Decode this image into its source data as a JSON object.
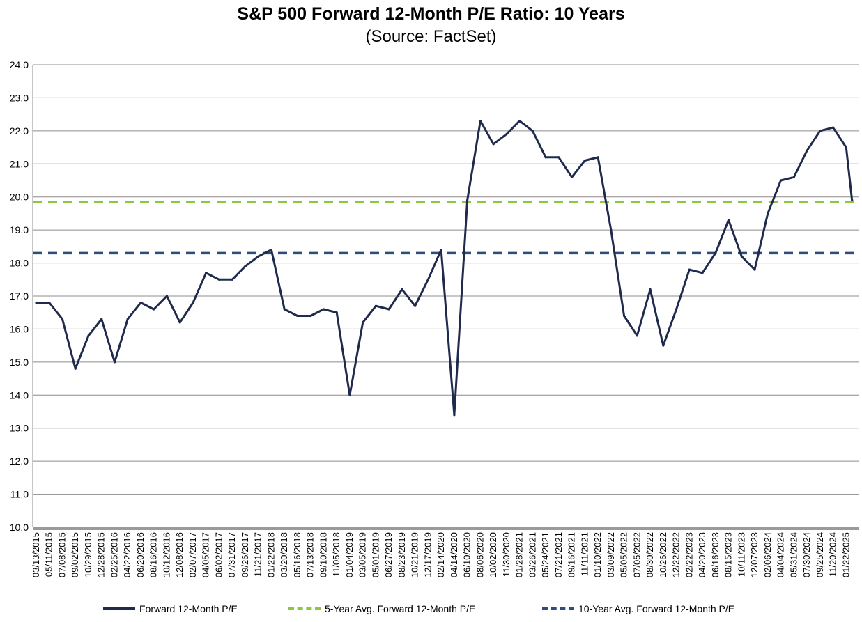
{
  "chart_data": {
    "type": "line",
    "title": "S&P 500 Forward 12-Month P/E Ratio: 10 Years",
    "subtitle": "(Source: FactSet)",
    "xlabel": "",
    "ylabel": "",
    "ylim": [
      10.0,
      24.0
    ],
    "y_ticks": [
      "10.0",
      "11.0",
      "12.0",
      "13.0",
      "14.0",
      "15.0",
      "16.0",
      "17.0",
      "18.0",
      "19.0",
      "20.0",
      "21.0",
      "22.0",
      "23.0",
      "24.0"
    ],
    "x_tick_labels": [
      "03/13/2015",
      "05/11/2015",
      "07/08/2015",
      "09/02/2015",
      "10/29/2015",
      "12/28/2015",
      "02/25/2016",
      "04/22/2016",
      "06/20/2016",
      "08/16/2016",
      "10/12/2016",
      "12/08/2016",
      "02/07/2017",
      "04/05/2017",
      "06/02/2017",
      "07/31/2017",
      "09/26/2017",
      "11/21/2017",
      "01/22/2018",
      "03/20/2018",
      "05/16/2018",
      "07/13/2018",
      "09/10/2018",
      "11/05/2018",
      "01/04/2019",
      "03/05/2019",
      "05/01/2019",
      "06/27/2019",
      "08/23/2019",
      "10/21/2019",
      "12/17/2019",
      "02/14/2020",
      "04/14/2020",
      "06/10/2020",
      "08/06/2020",
      "10/02/2020",
      "11/30/2020",
      "01/28/2021",
      "03/26/2021",
      "05/24/2021",
      "07/21/2021",
      "09/16/2021",
      "11/11/2021",
      "01/10/2022",
      "03/09/2022",
      "05/05/2022",
      "07/05/2022",
      "08/30/2022",
      "10/26/2022",
      "12/22/2022",
      "02/22/2023",
      "04/20/2023",
      "06/16/2023",
      "08/15/2023",
      "10/11/2023",
      "12/07/2023",
      "02/06/2024",
      "04/04/2024",
      "05/31/2024",
      "07/30/2024",
      "09/25/2024",
      "11/20/2024",
      "01/22/2025"
    ],
    "grid": true,
    "legend_position": "bottom",
    "series": [
      {
        "name": "Forward 12-Month P/E",
        "color": "#1f2a4d",
        "style": "solid",
        "x_index": [
          0,
          1,
          2,
          3,
          4,
          5,
          6,
          7,
          8,
          9,
          10,
          11,
          12,
          13,
          14,
          15,
          16,
          17,
          18,
          19,
          20,
          21,
          22,
          23,
          24,
          25,
          26,
          27,
          28,
          29,
          30,
          31,
          32,
          33,
          34,
          35,
          36,
          37,
          38,
          39,
          40,
          41,
          42,
          43,
          44,
          45,
          46,
          47,
          48,
          49,
          50,
          51,
          52,
          53,
          54,
          55,
          56,
          57,
          58,
          59,
          60,
          61,
          62,
          62.45
        ],
        "values": [
          16.8,
          16.8,
          16.3,
          14.8,
          15.8,
          16.3,
          15.0,
          16.3,
          16.8,
          16.6,
          17.0,
          16.2,
          16.8,
          17.7,
          17.5,
          17.5,
          17.9,
          18.2,
          18.4,
          16.6,
          16.4,
          16.4,
          16.6,
          16.5,
          14.0,
          16.2,
          16.7,
          16.6,
          17.2,
          16.7,
          17.5,
          18.4,
          13.4,
          19.9,
          22.3,
          21.6,
          21.9,
          22.3,
          22.0,
          21.2,
          21.2,
          20.6,
          21.1,
          21.2,
          19.0,
          16.4,
          15.8,
          17.2,
          15.5,
          16.6,
          17.8,
          17.7,
          18.3,
          19.3,
          18.2,
          17.8,
          19.5,
          20.5,
          20.6,
          21.4,
          22.0,
          22.1,
          21.5,
          19.9
        ]
      },
      {
        "name": "5-Year Avg. Forward 12-Month P/E",
        "color": "#8dc63f",
        "style": "dashed",
        "constant": 19.85
      },
      {
        "name": "10-Year Avg. Forward 12-Month P/E",
        "color": "#2f4d7a",
        "style": "dashed",
        "constant": 18.3
      }
    ]
  }
}
